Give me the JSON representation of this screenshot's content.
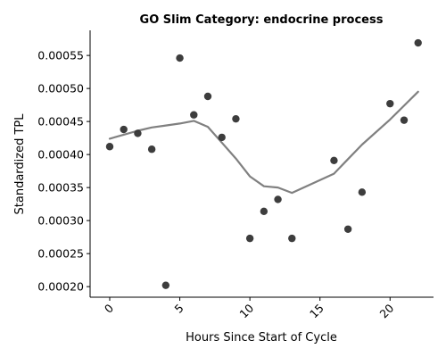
{
  "chart_data": {
    "type": "scatter",
    "title": "GO Slim Category: endocrine process",
    "xlabel": "Hours Since Start of Cycle",
    "ylabel": "Standardized TPL",
    "xlim": [
      -1.4,
      23.1
    ],
    "ylim": [
      0.000184,
      0.000588
    ],
    "x_ticks": [
      0,
      5,
      10,
      15,
      20
    ],
    "x_tick_labels": [
      "0",
      "5",
      "10",
      "15",
      "20"
    ],
    "y_ticks": [
      0.0002,
      0.00025,
      0.0003,
      0.00035,
      0.0004,
      0.00045,
      0.0005,
      0.00055
    ],
    "y_tick_labels": [
      "0.00020",
      "0.00025",
      "0.00030",
      "0.00035",
      "0.00040",
      "0.00045",
      "0.00050",
      "0.00055"
    ],
    "grid": false,
    "colors": {
      "points": "#333333",
      "trend": "#808080",
      "axes": "#000000"
    },
    "series": [
      {
        "kind": "points",
        "x": [
          0,
          1,
          2,
          3,
          4,
          5,
          6,
          7,
          8,
          9,
          10,
          11,
          12,
          13,
          16,
          17,
          18,
          20,
          21,
          22
        ],
        "y": [
          0.000412,
          0.000438,
          0.000432,
          0.000408,
          0.000202,
          0.000546,
          0.00046,
          0.000488,
          0.000426,
          0.000454,
          0.000273,
          0.000314,
          0.000332,
          0.000273,
          0.000391,
          0.000287,
          0.000343,
          0.000477,
          0.000452,
          0.000569
        ]
      },
      {
        "kind": "trend-line",
        "x": [
          0,
          1,
          2,
          3,
          4,
          5,
          6,
          7,
          8,
          9,
          10,
          11,
          12,
          13,
          16,
          17,
          18,
          20,
          21,
          22
        ],
        "y": [
          0.000424,
          0.00043,
          0.000436,
          0.000441,
          0.000444,
          0.000447,
          0.000451,
          0.000442,
          0.000418,
          0.000394,
          0.000367,
          0.000352,
          0.00035,
          0.000342,
          0.000371,
          0.000393,
          0.000415,
          0.000453,
          0.000474,
          0.000495
        ]
      }
    ]
  }
}
